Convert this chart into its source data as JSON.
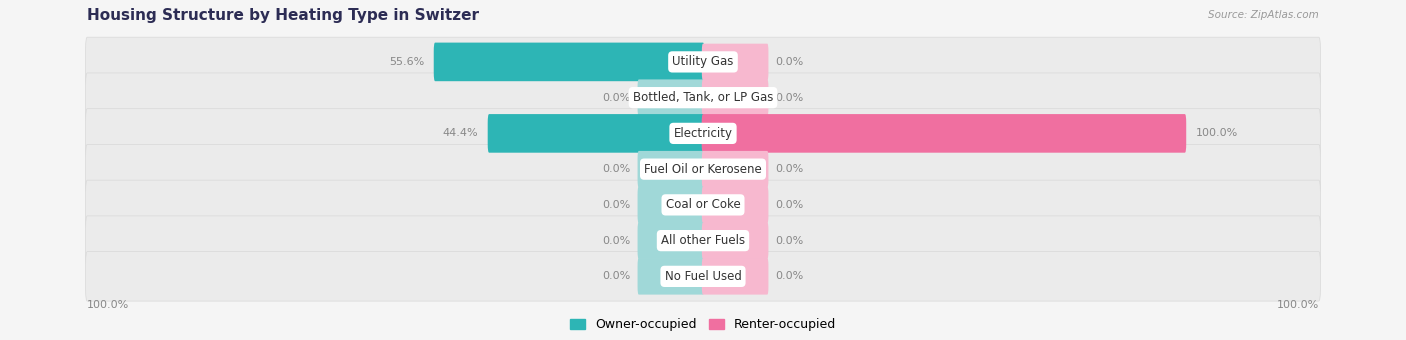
{
  "title": "Housing Structure by Heating Type in Switzer",
  "source": "Source: ZipAtlas.com",
  "categories": [
    "Utility Gas",
    "Bottled, Tank, or LP Gas",
    "Electricity",
    "Fuel Oil or Kerosene",
    "Coal or Coke",
    "All other Fuels",
    "No Fuel Used"
  ],
  "owner_values": [
    55.6,
    0.0,
    44.4,
    0.0,
    0.0,
    0.0,
    0.0
  ],
  "renter_values": [
    0.0,
    0.0,
    100.0,
    0.0,
    0.0,
    0.0,
    0.0
  ],
  "owner_color": "#2db5b5",
  "renter_color": "#f06fa0",
  "owner_zero_color": "#a0d8d8",
  "renter_zero_color": "#f7b8cf",
  "row_bg_color": "#ebebeb",
  "page_bg_color": "#f5f5f5",
  "title_color": "#2c2c54",
  "value_color": "#888888",
  "label_color": "#333333",
  "max_val": 100.0,
  "zero_stub": 12.0,
  "left_axis_label": "100.0%",
  "right_axis_label": "100.0%"
}
